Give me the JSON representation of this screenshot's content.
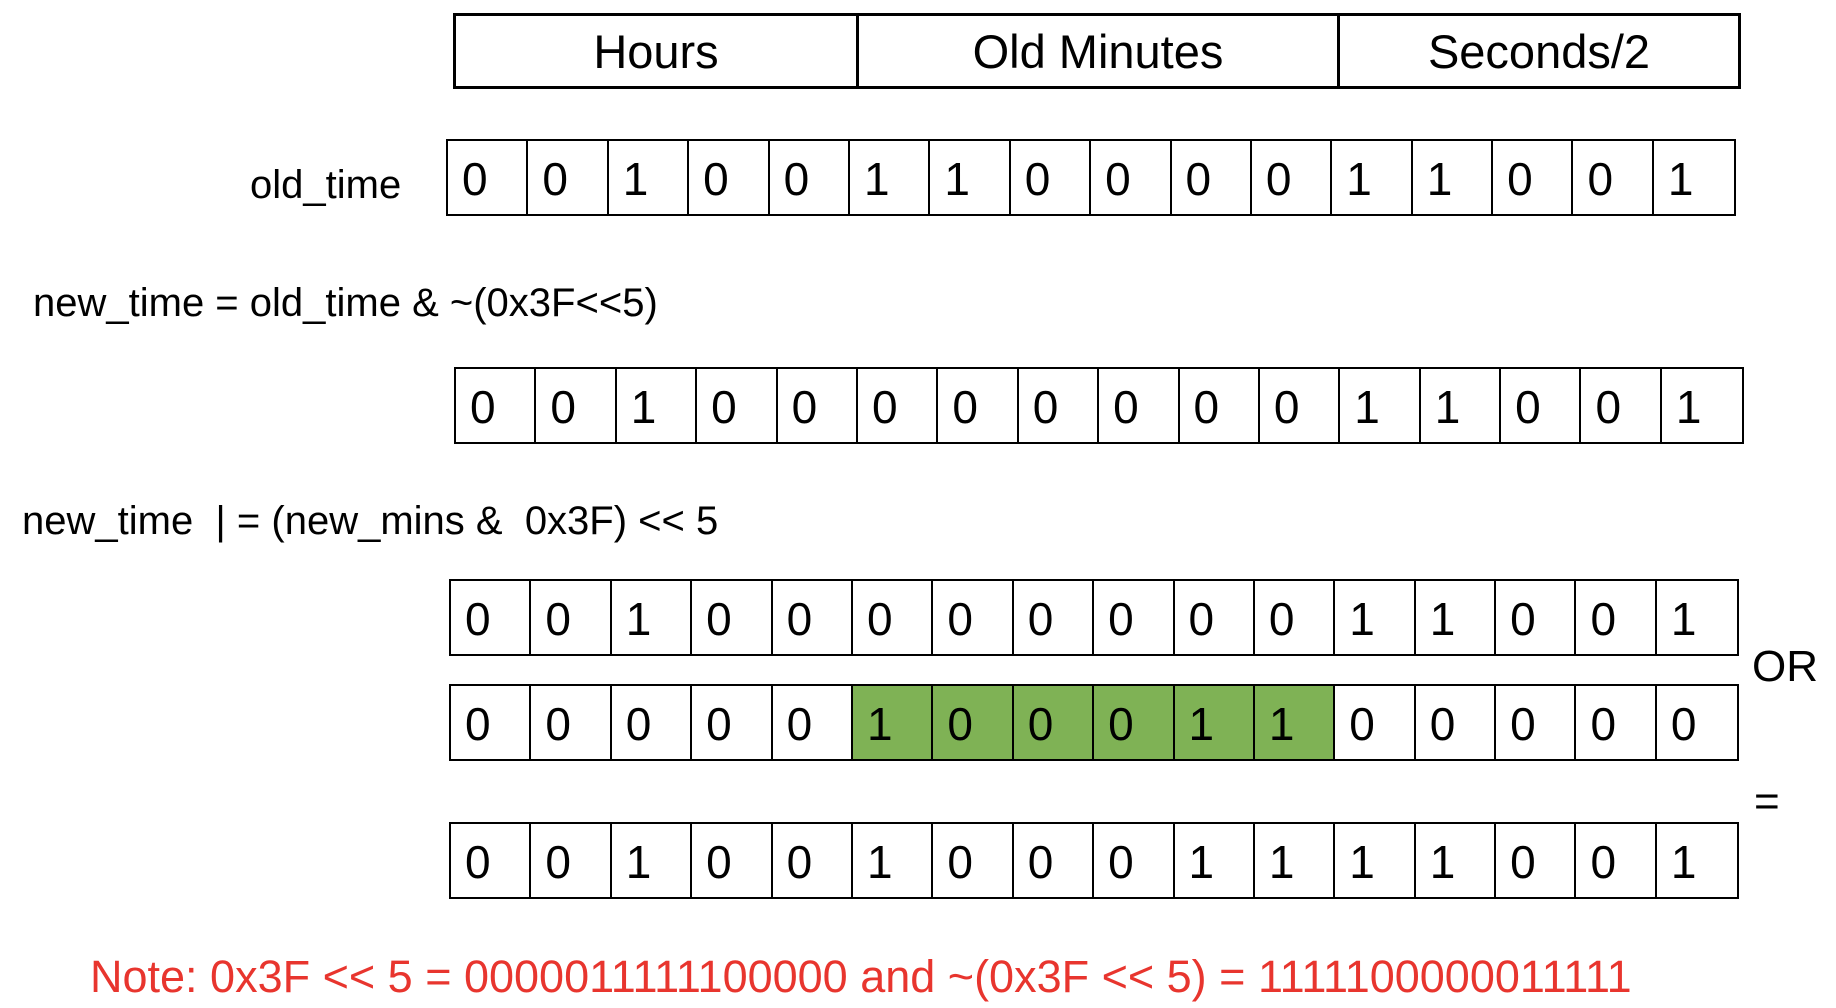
{
  "header": {
    "hours_label": "Hours",
    "minutes_label": "Old Minutes",
    "seconds_label": "Seconds/2"
  },
  "labels": {
    "old_time": "old_time",
    "step1": "new_time = old_time & ~(0x3F<<5)",
    "step2": "new_time  | = (new_mins &  0x3F) << 5",
    "or_op": "OR",
    "eq_op": "="
  },
  "rows": {
    "old_time": [
      "0",
      "0",
      "1",
      "0",
      "0",
      "1",
      "1",
      "0",
      "0",
      "0",
      "0",
      "1",
      "1",
      "0",
      "0",
      "1"
    ],
    "cleared": [
      "0",
      "0",
      "1",
      "0",
      "0",
      "0",
      "0",
      "0",
      "0",
      "0",
      "0",
      "1",
      "1",
      "0",
      "0",
      "1"
    ],
    "operand_a": [
      "0",
      "0",
      "1",
      "0",
      "0",
      "0",
      "0",
      "0",
      "0",
      "0",
      "0",
      "1",
      "1",
      "0",
      "0",
      "1"
    ],
    "operand_b": [
      "0",
      "0",
      "0",
      "0",
      "0",
      "1",
      "0",
      "0",
      "0",
      "1",
      "1",
      "0",
      "0",
      "0",
      "0",
      "0"
    ],
    "result": [
      "0",
      "0",
      "1",
      "0",
      "0",
      "1",
      "0",
      "0",
      "0",
      "1",
      "1",
      "1",
      "1",
      "0",
      "0",
      "1"
    ]
  },
  "highlight": {
    "row": "operand_b",
    "bit_indices": [
      5,
      6,
      7,
      8,
      9,
      10
    ],
    "color": "#7fb255"
  },
  "note": "Note: 0x3F << 5 = 0000011111100000 and ~(0x3F << 5) = 1111100000011111",
  "note_color": "#e8352e"
}
